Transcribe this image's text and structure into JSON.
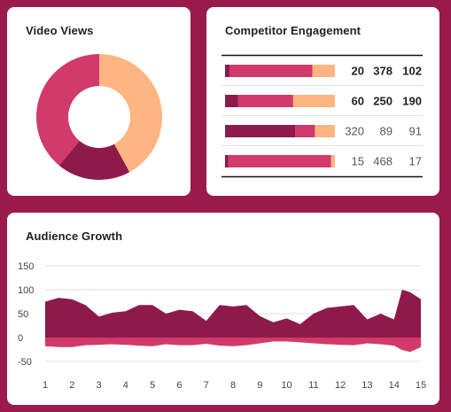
{
  "colors": {
    "background": "#9a1a4b",
    "dark": "#8e1a4c",
    "mid": "#d13a6a",
    "light": "#ffb581",
    "grid": "#e0e0e0"
  },
  "video_views": {
    "title": "Video Views"
  },
  "competitor": {
    "title": "Competitor Engagement"
  },
  "audience": {
    "title": "Audience Growth"
  },
  "chart_data": [
    {
      "type": "pie",
      "title": "Video Views",
      "donut": true,
      "slices": [
        {
          "value": 42,
          "color": "#ffb581"
        },
        {
          "value": 19,
          "color": "#8e1a4c"
        },
        {
          "value": 39,
          "color": "#d13a6a"
        }
      ]
    },
    {
      "type": "bar",
      "stacked": true,
      "orientation": "horizontal",
      "title": "Competitor Engagement",
      "rows": [
        {
          "values": [
            20,
            378,
            102
          ],
          "bold": true
        },
        {
          "values": [
            60,
            250,
            190
          ],
          "bold": true
        },
        {
          "values": [
            320,
            89,
            91
          ],
          "bold": false
        },
        {
          "values": [
            15,
            468,
            17
          ],
          "bold": false
        }
      ],
      "colors": [
        "#8e1a4c",
        "#d13a6a",
        "#ffb581"
      ]
    },
    {
      "type": "area",
      "title": "Audience Growth",
      "x": [
        1,
        1.5,
        2,
        2.5,
        3,
        3.5,
        4,
        4.5,
        5,
        5.5,
        6,
        6.5,
        7,
        7.5,
        8,
        8.5,
        9,
        9.5,
        10,
        10.5,
        11,
        11.5,
        12,
        12.5,
        13,
        13.5,
        14,
        14.3,
        14.6,
        15
      ],
      "x_ticks": [
        "1",
        "2",
        "3",
        "4",
        "5",
        "6",
        "7",
        "8",
        "9",
        "10",
        "11",
        "12",
        "13",
        "14",
        "15"
      ],
      "y_ticks": [
        "150",
        "100",
        "50",
        "0",
        "-50"
      ],
      "ylim": [
        -60,
        150
      ],
      "series": [
        {
          "values": [
            75,
            83,
            80,
            68,
            44,
            52,
            55,
            68,
            68,
            50,
            58,
            55,
            35,
            68,
            65,
            68,
            45,
            32,
            40,
            28,
            50,
            62,
            65,
            68,
            38,
            50,
            38,
            100,
            95,
            80
          ]
        },
        {
          "values": [
            -18,
            -20,
            -20,
            -16,
            -15,
            -14,
            -15,
            -17,
            -18,
            -14,
            -16,
            -16,
            -13,
            -17,
            -18,
            -16,
            -12,
            -8,
            -8,
            -10,
            -12,
            -14,
            -15,
            -16,
            -12,
            -14,
            -17,
            -26,
            -30,
            -20
          ]
        }
      ]
    }
  ]
}
